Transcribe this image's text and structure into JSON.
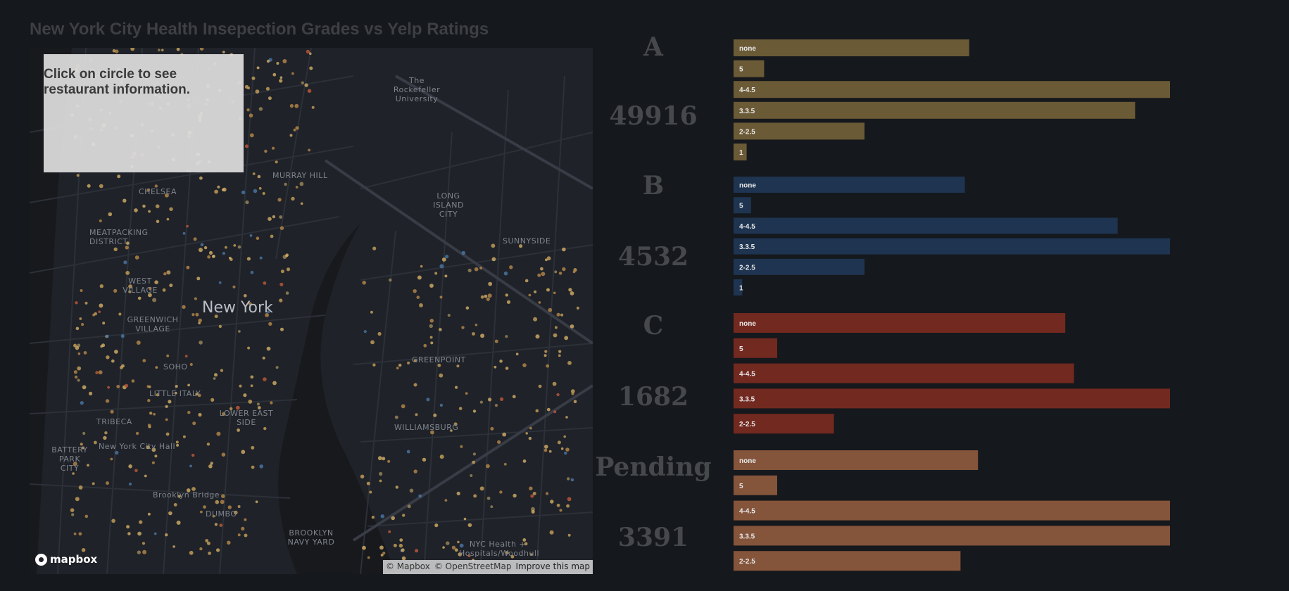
{
  "title": "New York City Health Insepection Grades vs Yelp Ratings",
  "map": {
    "info_text": "Click on circle to see restaurant information.",
    "city_label": "New York",
    "places": [
      {
        "name": "The Rockefeller University"
      },
      {
        "name": "MURRAY HILL"
      },
      {
        "name": "CHELSEA"
      },
      {
        "name": "MEATPACKING DISTRICT"
      },
      {
        "name": "LONG ISLAND CITY"
      },
      {
        "name": "SUNNYSIDE"
      },
      {
        "name": "WEST VILLAGE"
      },
      {
        "name": "GREENWICH VILLAGE"
      },
      {
        "name": "SOHO"
      },
      {
        "name": "LITTLE ITALY"
      },
      {
        "name": "LOWER EAST SIDE"
      },
      {
        "name": "TRIBECA"
      },
      {
        "name": "New York City Hall"
      },
      {
        "name": "BATTERY PARK CITY"
      },
      {
        "name": "GREENPOINT"
      },
      {
        "name": "WILLIAMSBURG"
      },
      {
        "name": "Brooklyn Bridge"
      },
      {
        "name": "DUMBO"
      },
      {
        "name": "BROOKLYN NAVY YARD"
      },
      {
        "name": "NYC Health + Hospitals/Woodhull"
      }
    ],
    "logo": "mapbox",
    "attribution_mapbox": "© Mapbox",
    "attribution_osm": "© OpenStreetMap",
    "attribution_improve": "Improve this map"
  },
  "chart_data": {
    "type": "bar",
    "orientation": "horizontal",
    "title": "New York City Health Insepection Grades vs Yelp Ratings",
    "xlim": [
      0,
      100
    ],
    "groups": [
      {
        "grade": "A",
        "count": "49916",
        "color": "#6b5a36",
        "categories": [
          "none",
          "5",
          "4-4.5",
          "3.3.5",
          "2-2.5",
          "1"
        ],
        "values": [
          54,
          7,
          100,
          92,
          30,
          3
        ]
      },
      {
        "grade": "B",
        "count": "4532",
        "color": "#1e3450",
        "categories": [
          "none",
          "5",
          "4-4.5",
          "3.3.5",
          "2-2.5",
          "1"
        ],
        "values": [
          53,
          4,
          88,
          100,
          30,
          2
        ]
      },
      {
        "grade": "C",
        "count": "1682",
        "color": "#722920",
        "categories": [
          "none",
          "5",
          "4-4.5",
          "3.3.5",
          "2-2.5"
        ],
        "values": [
          76,
          10,
          78,
          100,
          23
        ]
      },
      {
        "grade": "Pending",
        "count": "3391",
        "color": "#84543b",
        "categories": [
          "none",
          "5",
          "4-4.5",
          "3.3.5",
          "2-2.5"
        ],
        "values": [
          56,
          10,
          100,
          100,
          52
        ]
      }
    ]
  }
}
